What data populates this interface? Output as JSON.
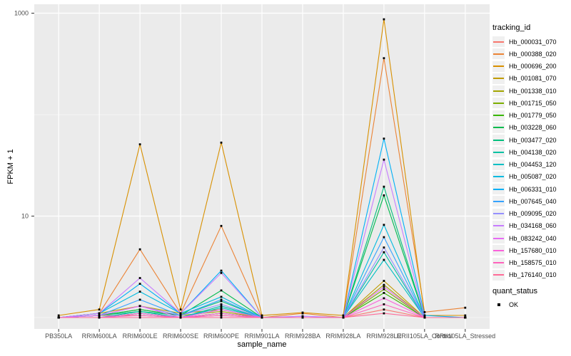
{
  "figure": {
    "panel_bg": "#EBEBEB",
    "grid_color": "#FFFFFF",
    "tick_color": "#333333",
    "tick_text_color": "#4D4D4D",
    "title_text_color": "#000000",
    "marker_color": "#000000",
    "legend_key_bg": "#F0F0F0"
  },
  "legend": {
    "color_title": "tracking_id",
    "shape_title": "quant_status",
    "shape_label": "OK"
  },
  "chart_data": {
    "type": "line",
    "title": "",
    "xlabel": "sample_name",
    "ylabel": "FPKM + 1",
    "x_type": "categorical",
    "y_scale": "log10",
    "ylim": [
      0.75,
      1250
    ],
    "grid": true,
    "legend_position": "right",
    "y_ticks": [
      {
        "label": "10",
        "value": 10
      },
      {
        "label": "1000",
        "value": 1000
      }
    ],
    "y_minor_grid_values": [
      1,
      100
    ],
    "categories": [
      "PB350LA",
      "RRIM600LA",
      "RRIM600LE",
      "RRIM600SE",
      "RRIM600PE",
      "RRIM901LA",
      "RRIM928BA",
      "RRIM928LA",
      "RRIM928LE",
      "RRII105LA_Control",
      "RRII105LA_Stressed"
    ],
    "quant_status": "OK",
    "series": [
      {
        "name": "Hb_000031_070",
        "color": "#F8766D",
        "values": [
          1.0,
          1.05,
          1.05,
          1.0,
          1.05,
          1.0,
          1.0,
          1.0,
          1.2,
          1.0,
          1.0
        ]
      },
      {
        "name": "Hb_000388_020",
        "color": "#EB8335",
        "values": [
          1.0,
          1.1,
          4.7,
          1.1,
          8.0,
          1.0,
          1.1,
          1.0,
          360,
          1.13,
          1.25
        ]
      },
      {
        "name": "Hb_000696_200",
        "color": "#D89000",
        "values": [
          1.05,
          1.2,
          51,
          1.2,
          53,
          1.05,
          1.12,
          1.05,
          870,
          1.05,
          1.05
        ]
      },
      {
        "name": "Hb_001081_070",
        "color": "#C09B00",
        "values": [
          1.0,
          1.1,
          1.3,
          1.1,
          1.2,
          1.0,
          1.0,
          1.0,
          2.3,
          1.0,
          1.0
        ]
      },
      {
        "name": "Hb_001338_010",
        "color": "#A3A500",
        "values": [
          1.0,
          1.05,
          1.2,
          1.05,
          1.15,
          1.0,
          1.0,
          1.0,
          2.1,
          1.0,
          1.0
        ]
      },
      {
        "name": "Hb_001715_050",
        "color": "#7CAE00",
        "values": [
          1.0,
          1.0,
          1.1,
          1.0,
          1.1,
          1.0,
          1.0,
          1.0,
          1.9,
          1.0,
          1.0
        ]
      },
      {
        "name": "Hb_001779_050",
        "color": "#39B600",
        "values": [
          1.0,
          1.0,
          1.1,
          1.0,
          1.1,
          1.0,
          1.0,
          1.0,
          1.75,
          1.0,
          1.0
        ]
      },
      {
        "name": "Hb_003228_060",
        "color": "#00BB4E",
        "values": [
          1.0,
          1.05,
          1.2,
          1.05,
          1.85,
          1.0,
          1.0,
          1.0,
          16,
          1.0,
          1.0
        ]
      },
      {
        "name": "Hb_003477_020",
        "color": "#00BF7D",
        "values": [
          1.0,
          1.05,
          1.15,
          1.05,
          1.45,
          1.0,
          1.0,
          1.0,
          19.5,
          1.0,
          1.0
        ]
      },
      {
        "name": "Hb_004138_020",
        "color": "#00C1A3",
        "values": [
          1.0,
          1.0,
          1.15,
          1.0,
          1.3,
          1.0,
          1.0,
          1.0,
          4.4,
          1.0,
          1.0
        ]
      },
      {
        "name": "Hb_004453_120",
        "color": "#00BFC4",
        "values": [
          1.0,
          1.0,
          1.1,
          1.0,
          1.25,
          1.0,
          1.0,
          1.0,
          3.7,
          1.0,
          1.0
        ]
      },
      {
        "name": "Hb_005087_020",
        "color": "#00BAE0",
        "values": [
          1.0,
          1.1,
          1.8,
          1.1,
          1.6,
          1.0,
          1.0,
          1.0,
          8.2,
          1.0,
          1.0
        ]
      },
      {
        "name": "Hb_006331_010",
        "color": "#00B0F6",
        "values": [
          1.0,
          1.1,
          2.15,
          1.1,
          2.9,
          1.0,
          1.0,
          1.0,
          58,
          1.05,
          1.0
        ]
      },
      {
        "name": "Hb_007645_040",
        "color": "#35A2FF",
        "values": [
          1.0,
          1.05,
          1.5,
          1.05,
          1.5,
          1.0,
          1.0,
          1.0,
          6.2,
          1.0,
          1.0
        ]
      },
      {
        "name": "Hb_009095_020",
        "color": "#9590FF",
        "values": [
          1.0,
          1.05,
          1.3,
          1.05,
          1.35,
          1.0,
          1.03,
          1.0,
          4.9,
          1.0,
          1.0
        ]
      },
      {
        "name": "Hb_034168_060",
        "color": "#C77CFF",
        "values": [
          1.0,
          1.1,
          2.45,
          1.1,
          2.75,
          1.0,
          1.03,
          1.0,
          36,
          1.0,
          1.0
        ]
      },
      {
        "name": "Hb_083242_040",
        "color": "#E76BF3",
        "values": [
          1.0,
          1.05,
          1.3,
          1.0,
          1.2,
          1.0,
          1.0,
          1.0,
          2.0,
          1.0,
          1.0
        ]
      },
      {
        "name": "Hb_157680_010",
        "color": "#FA62DB",
        "values": [
          1.0,
          1.0,
          1.1,
          1.0,
          1.1,
          1.0,
          1.0,
          1.0,
          1.55,
          1.0,
          1.0
        ]
      },
      {
        "name": "Hb_158575_010",
        "color": "#FF62BC",
        "values": [
          1.0,
          1.0,
          1.05,
          1.0,
          1.05,
          1.0,
          1.0,
          1.0,
          1.35,
          1.0,
          1.0
        ]
      },
      {
        "name": "Hb_176140_010",
        "color": "#FF6A98",
        "values": [
          1.0,
          1.0,
          1.0,
          1.0,
          1.0,
          1.0,
          1.0,
          1.0,
          1.1,
          1.0,
          1.0
        ]
      }
    ]
  }
}
